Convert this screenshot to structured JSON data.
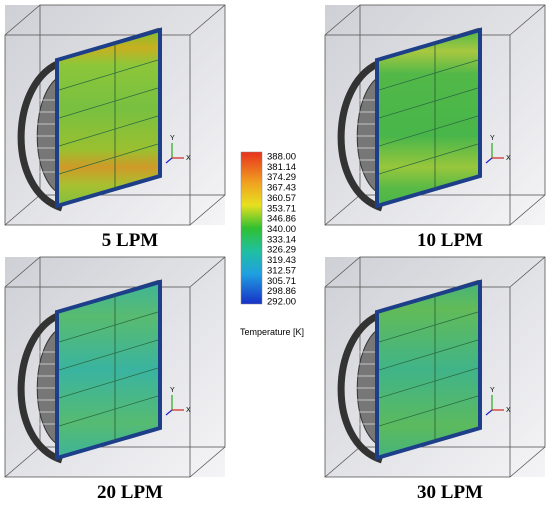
{
  "panels": [
    {
      "label": "5 LPM"
    },
    {
      "label": "10 LPM"
    },
    {
      "label": "20 LPM"
    },
    {
      "label": "30 LPM"
    }
  ],
  "triad_labels": {
    "y": "Y",
    "x": "X"
  },
  "colorbar": {
    "ticks": [
      "388.00",
      "381.14",
      "374.29",
      "367.43",
      "360.57",
      "353.71",
      "346.86",
      "340.00",
      "333.14",
      "326.29",
      "319.43",
      "312.57",
      "305.71",
      "298.86",
      "292.00"
    ],
    "title": "Temperature [K]"
  }
}
